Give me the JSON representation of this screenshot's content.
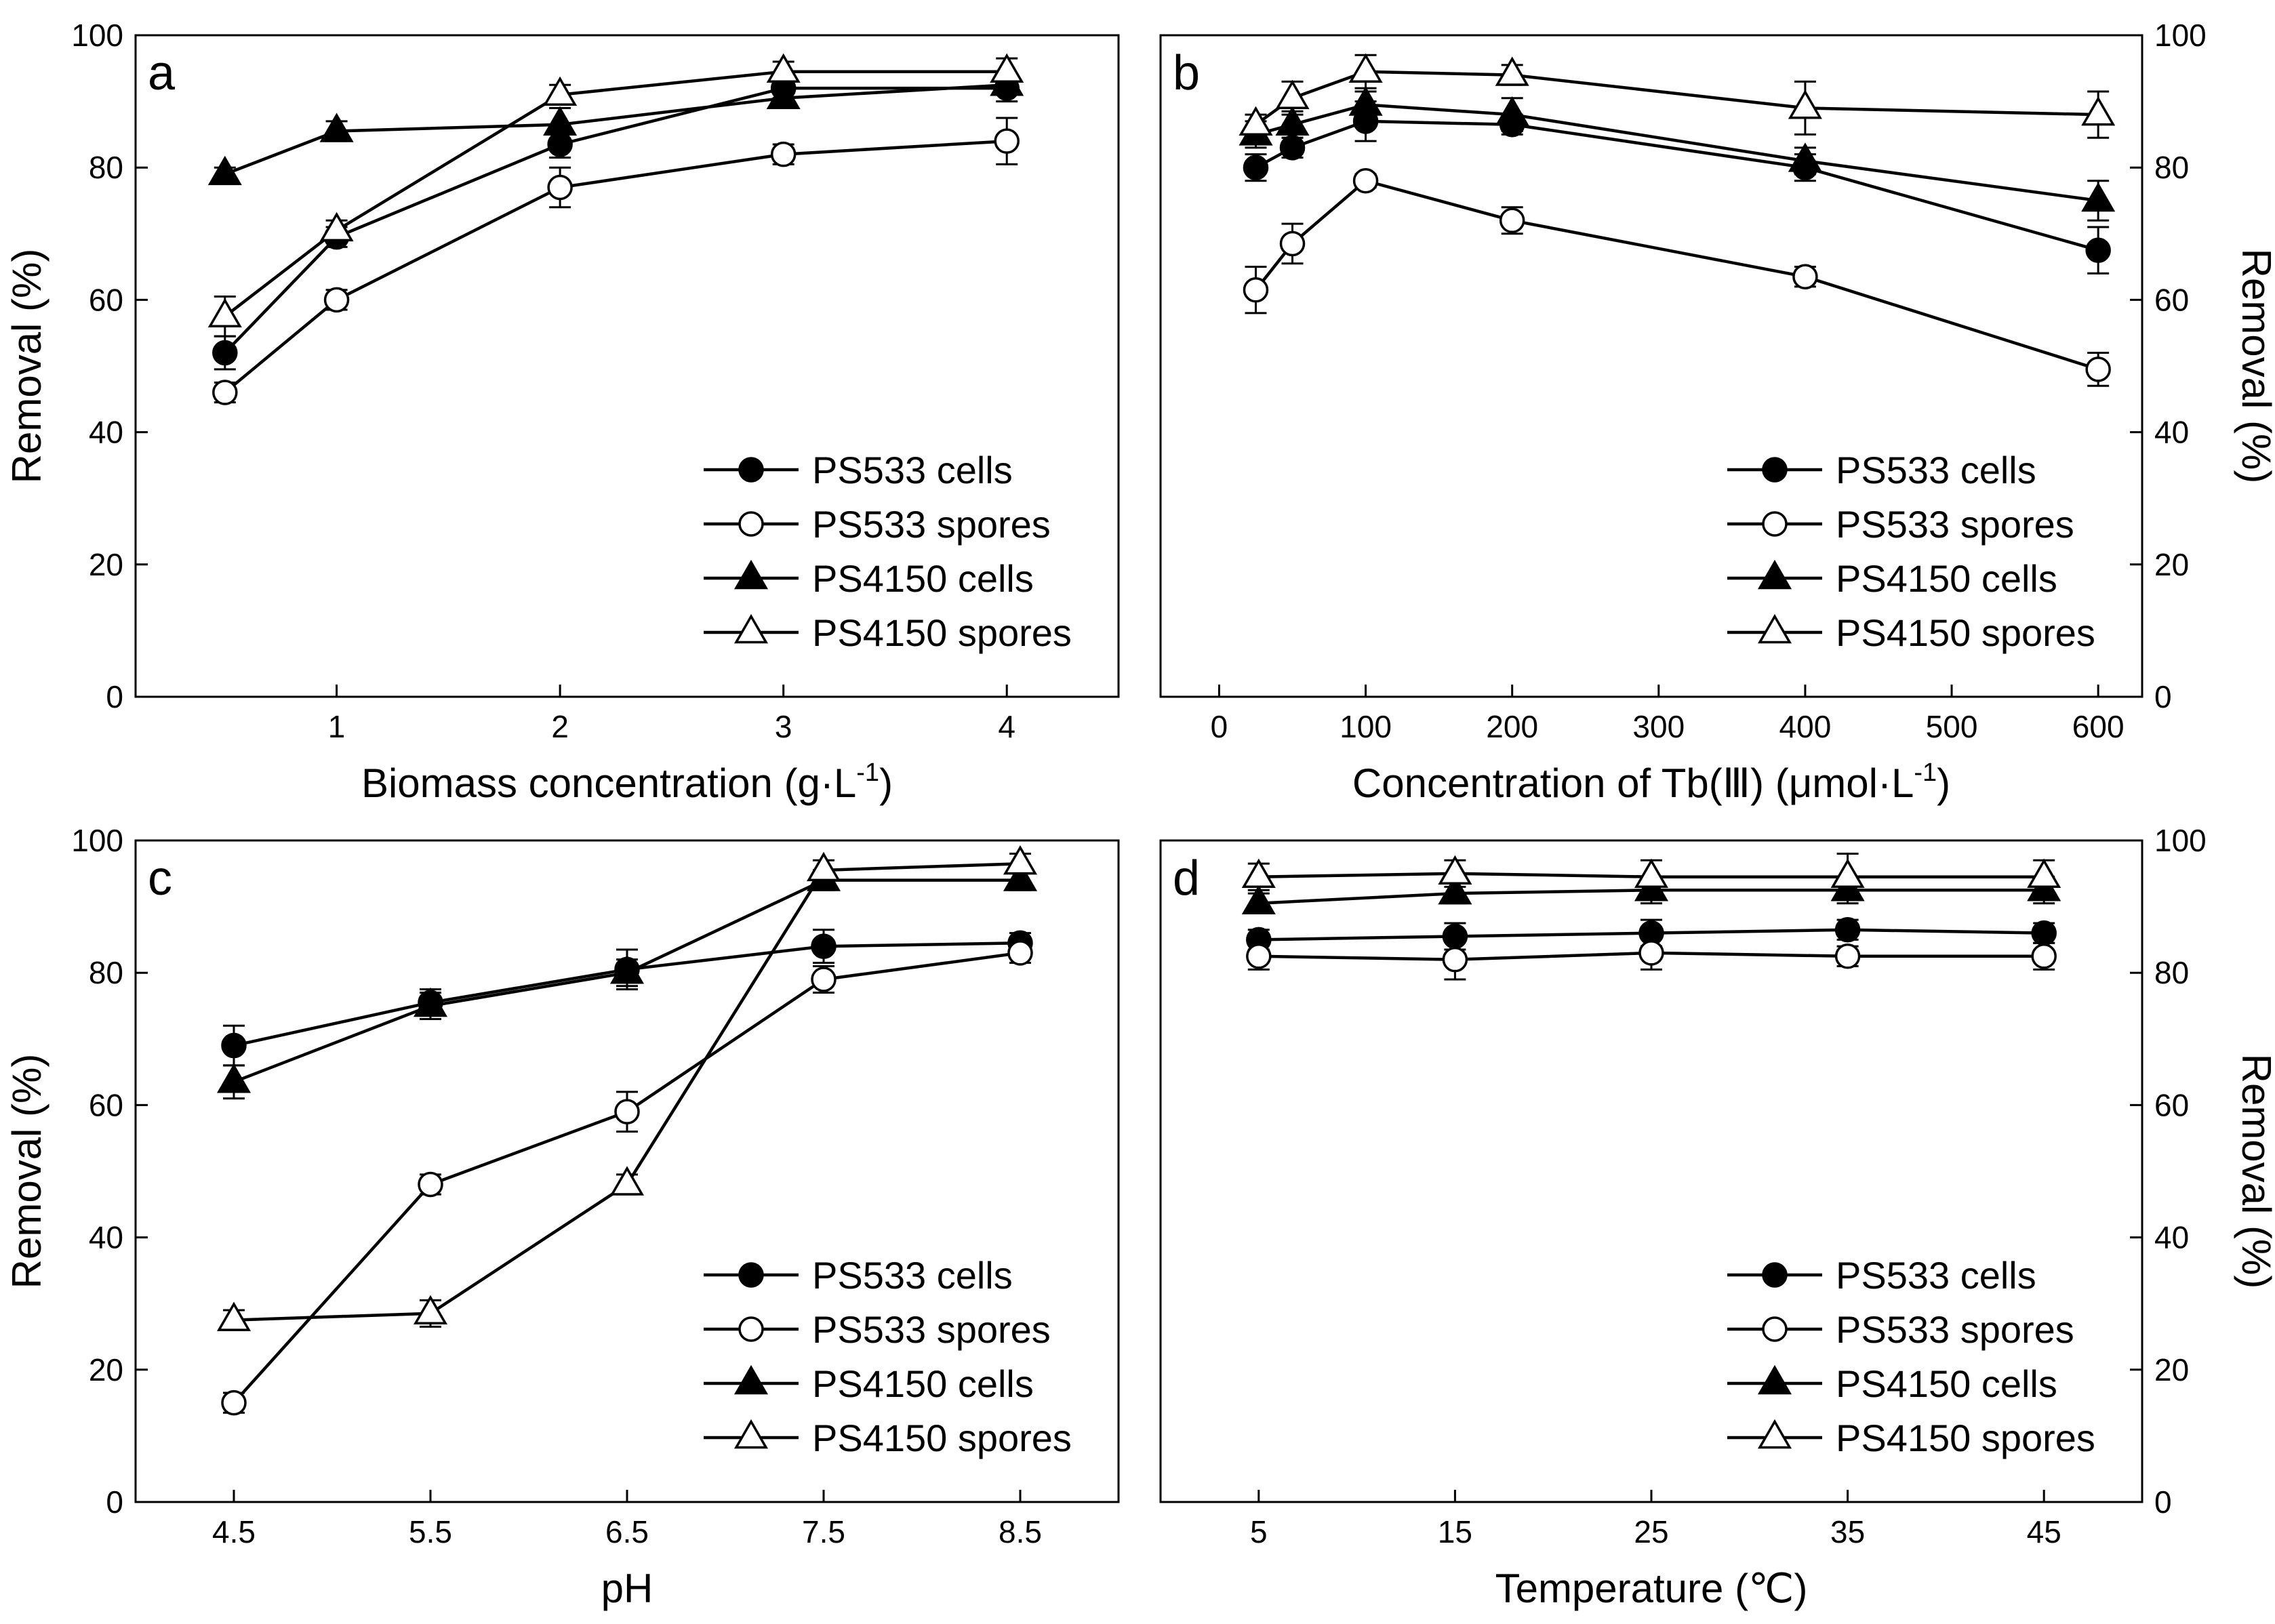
{
  "legend_entries": [
    "PS533 cells",
    "PS533 spores",
    "PS4150 cells",
    "PS4150 spores"
  ],
  "chart_data": [
    {
      "type": "line",
      "panel": "a",
      "xlabel": "Biomass concentration (g·L",
      "xlabel_sup": "-1",
      "xlabel_tail": ")",
      "ylabel": "Removal (%)",
      "ylabel_side": "left",
      "xlim": [
        0.1,
        4.5
      ],
      "ylim": [
        0,
        100
      ],
      "x_ticks": [
        1,
        2,
        3,
        4
      ],
      "x_tick_labels": [
        "1",
        "2",
        "3",
        "4"
      ],
      "y_ticks": [
        0,
        20,
        40,
        60,
        80,
        100
      ],
      "y_tick_labels": [
        "0",
        "20",
        "40",
        "60",
        "80",
        "100"
      ],
      "legend_position": "bottom-right",
      "x": [
        0.5,
        1,
        2,
        3,
        4
      ],
      "series": [
        {
          "name": "PS533 cells",
          "marker": "circle-filled",
          "values": [
            52,
            69.5,
            83.5,
            92,
            92
          ],
          "errors": [
            2.5,
            1.5,
            2,
            1.5,
            2
          ]
        },
        {
          "name": "PS533 spores",
          "marker": "circle-open",
          "values": [
            46,
            60,
            77,
            82,
            84
          ],
          "errors": [
            1.5,
            1.5,
            3,
            1.5,
            3.5
          ]
        },
        {
          "name": "PS4150 cells",
          "marker": "triangle-filled",
          "values": [
            79,
            85.5,
            86.5,
            90.5,
            92.5
          ],
          "errors": [
            1,
            1.5,
            2.5,
            1.5,
            1.5
          ]
        },
        {
          "name": "PS4150 spores",
          "marker": "triangle-open",
          "values": [
            57.5,
            70.5,
            91,
            94.5,
            94.5
          ],
          "errors": [
            3,
            1.5,
            1.5,
            1.5,
            2
          ]
        }
      ]
    },
    {
      "type": "line",
      "panel": "b",
      "xlabel": "Concentration of Tb(Ⅲ) (μmol·L",
      "xlabel_sup": "-1",
      "xlabel_tail": ")",
      "ylabel": "Removal (%)",
      "ylabel_side": "right",
      "xlim": [
        -40,
        630
      ],
      "ylim": [
        0,
        100
      ],
      "x_ticks": [
        0,
        100,
        200,
        300,
        400,
        500,
        600
      ],
      "x_tick_labels": [
        "0",
        "100",
        "200",
        "300",
        "400",
        "500",
        "600"
      ],
      "y_ticks": [
        0,
        20,
        40,
        60,
        80,
        100
      ],
      "y_tick_labels": [
        "0",
        "20",
        "40",
        "60",
        "80",
        "100"
      ],
      "legend_position": "bottom-right",
      "x": [
        25,
        50,
        100,
        200,
        400,
        600
      ],
      "series": [
        {
          "name": "PS533 cells",
          "marker": "circle-filled",
          "values": [
            80,
            83,
            87,
            86.5,
            80,
            67.5
          ],
          "errors": [
            2,
            1.5,
            3,
            1.5,
            2,
            3.5
          ]
        },
        {
          "name": "PS533 spores",
          "marker": "circle-open",
          "values": [
            61.5,
            68.5,
            78,
            72,
            63.5,
            49.5
          ],
          "errors": [
            3.5,
            3,
            1,
            2,
            1.5,
            2.5
          ]
        },
        {
          "name": "PS4150 cells",
          "marker": "triangle-filled",
          "values": [
            85,
            86.5,
            89.5,
            88,
            81,
            75
          ],
          "errors": [
            2,
            2,
            2,
            2.5,
            2,
            3
          ]
        },
        {
          "name": "PS4150 spores",
          "marker": "triangle-open",
          "values": [
            86.5,
            90.5,
            94.5,
            94,
            89,
            88
          ],
          "errors": [
            1.5,
            2.5,
            2.5,
            1.5,
            4,
            3.5
          ]
        }
      ]
    },
    {
      "type": "line",
      "panel": "c",
      "xlabel": "pH",
      "xlabel_sup": "",
      "xlabel_tail": "",
      "ylabel": "Removal (%)",
      "ylabel_side": "left",
      "xlim": [
        4.0,
        9.0
      ],
      "ylim": [
        0,
        100
      ],
      "x_ticks": [
        4.5,
        5.5,
        6.5,
        7.5,
        8.5
      ],
      "x_tick_labels": [
        "4.5",
        "5.5",
        "6.5",
        "7.5",
        "8.5"
      ],
      "y_ticks": [
        0,
        20,
        40,
        60,
        80,
        100
      ],
      "y_tick_labels": [
        "0",
        "20",
        "40",
        "60",
        "80",
        "100"
      ],
      "legend_position": "bottom-right",
      "x": [
        4.5,
        5.5,
        6.5,
        7.5,
        8.5
      ],
      "series": [
        {
          "name": "PS533 cells",
          "marker": "circle-filled",
          "values": [
            69,
            75.5,
            80.5,
            84,
            84.5
          ],
          "errors": [
            3,
            2,
            3,
            2.5,
            1.5
          ]
        },
        {
          "name": "PS533 spores",
          "marker": "circle-open",
          "values": [
            15,
            48,
            59,
            79,
            83
          ],
          "errors": [
            1.5,
            1.5,
            3,
            2,
            1.5
          ]
        },
        {
          "name": "PS4150 cells",
          "marker": "triangle-filled",
          "values": [
            63.5,
            75,
            80,
            94,
            94
          ],
          "errors": [
            2.5,
            2,
            2,
            1.5,
            1.5
          ]
        },
        {
          "name": "PS4150 spores",
          "marker": "triangle-open",
          "values": [
            27.5,
            28.5,
            48,
            95.5,
            96.5
          ],
          "errors": [
            1.5,
            2,
            1.5,
            1.5,
            1.5
          ]
        }
      ]
    },
    {
      "type": "line",
      "panel": "d",
      "xlabel": "Temperature (℃)",
      "xlabel_sup": "",
      "xlabel_tail": "",
      "ylabel": "Removal (%)",
      "ylabel_side": "right",
      "xlim": [
        0,
        50
      ],
      "ylim": [
        0,
        100
      ],
      "x_ticks": [
        5,
        15,
        25,
        35,
        45
      ],
      "x_tick_labels": [
        "5",
        "15",
        "25",
        "35",
        "45"
      ],
      "y_ticks": [
        0,
        20,
        40,
        60,
        80,
        100
      ],
      "y_tick_labels": [
        "0",
        "20",
        "40",
        "60",
        "80",
        "100"
      ],
      "legend_position": "bottom-right",
      "x": [
        5,
        15,
        25,
        35,
        45
      ],
      "series": [
        {
          "name": "PS533 cells",
          "marker": "circle-filled",
          "values": [
            85,
            85.5,
            86,
            86.5,
            86
          ],
          "errors": [
            1.5,
            2,
            2,
            1.5,
            1.5
          ]
        },
        {
          "name": "PS533 spores",
          "marker": "circle-open",
          "values": [
            82.5,
            82,
            83,
            82.5,
            82.5
          ],
          "errors": [
            2,
            3,
            2.5,
            1.5,
            2
          ]
        },
        {
          "name": "PS4150 cells",
          "marker": "triangle-filled",
          "values": [
            90.5,
            92,
            92.5,
            92.5,
            92.5
          ],
          "errors": [
            1.5,
            1.5,
            2,
            2,
            2
          ]
        },
        {
          "name": "PS4150 spores",
          "marker": "triangle-open",
          "values": [
            94.5,
            95,
            94.5,
            94.5,
            94.5
          ],
          "errors": [
            2,
            2,
            2.5,
            3.5,
            2.5
          ]
        }
      ]
    }
  ]
}
